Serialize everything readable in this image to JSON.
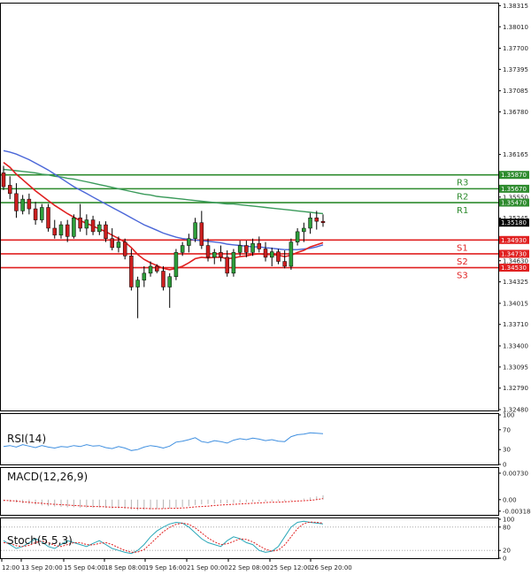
{
  "chart_data": [
    {
      "type": "candlestick",
      "panel": "price",
      "ylim": [
        1.3248,
        1.3832
      ],
      "yticks": [
        "1.38315",
        "1.38010",
        "1.37700",
        "1.37395",
        "1.37085",
        "1.36780",
        "1.36165",
        "1.35860",
        "1.35550",
        "1.35245",
        "1.34935",
        "1.34630",
        "1.34325",
        "1.34015",
        "1.33710",
        "1.33400",
        "1.33095",
        "1.32790",
        "1.32480"
      ],
      "xticks": [
        "12:00",
        "13 Sep 20:00",
        "15 Sep 04:00",
        "18 Sep 08:00",
        "19 Sep 16:00",
        "21 Sep 00:00",
        "22 Sep 08:00",
        "25 Sep 12:00",
        "26 Sep 20:00"
      ],
      "levels": [
        {
          "name": "R3",
          "value": 1.3587,
          "label": "1.35870",
          "color": "#2e8b2e"
        },
        {
          "name": "R2",
          "value": 1.3567,
          "label": "1.35670",
          "color": "#2e8b2e"
        },
        {
          "name": "R1",
          "value": 1.3547,
          "label": "1.35470",
          "color": "#2e8b2e"
        },
        {
          "name": "S1",
          "value": 1.3493,
          "label": "1.34930",
          "color": "#e02020"
        },
        {
          "name": "S2",
          "value": 1.3473,
          "label": "1.34730",
          "color": "#e02020"
        },
        {
          "name": "S3",
          "value": 1.3453,
          "label": "1.34530",
          "color": "#e02020"
        }
      ],
      "current_price": {
        "value": 1.3518,
        "label": "1.35180"
      },
      "candles": [
        {
          "o": 1.359,
          "h": 1.36,
          "l": 1.3565,
          "c": 1.357
        },
        {
          "o": 1.3572,
          "h": 1.3585,
          "l": 1.3552,
          "c": 1.356
        },
        {
          "o": 1.356,
          "h": 1.3575,
          "l": 1.3525,
          "c": 1.3535
        },
        {
          "o": 1.3535,
          "h": 1.3558,
          "l": 1.353,
          "c": 1.3552
        },
        {
          "o": 1.3552,
          "h": 1.356,
          "l": 1.353,
          "c": 1.3538
        },
        {
          "o": 1.3538,
          "h": 1.3548,
          "l": 1.3515,
          "c": 1.3522
        },
        {
          "o": 1.3522,
          "h": 1.3545,
          "l": 1.3518,
          "c": 1.354
        },
        {
          "o": 1.354,
          "h": 1.3545,
          "l": 1.3505,
          "c": 1.351
        },
        {
          "o": 1.351,
          "h": 1.3522,
          "l": 1.3495,
          "c": 1.35
        },
        {
          "o": 1.35,
          "h": 1.352,
          "l": 1.3495,
          "c": 1.3515
        },
        {
          "o": 1.3515,
          "h": 1.3522,
          "l": 1.349,
          "c": 1.3498
        },
        {
          "o": 1.3498,
          "h": 1.353,
          "l": 1.3495,
          "c": 1.3525
        },
        {
          "o": 1.3525,
          "h": 1.3545,
          "l": 1.3505,
          "c": 1.351
        },
        {
          "o": 1.351,
          "h": 1.353,
          "l": 1.35,
          "c": 1.3522
        },
        {
          "o": 1.3522,
          "h": 1.3528,
          "l": 1.35,
          "c": 1.3505
        },
        {
          "o": 1.3505,
          "h": 1.352,
          "l": 1.35,
          "c": 1.3515
        },
        {
          "o": 1.3515,
          "h": 1.352,
          "l": 1.349,
          "c": 1.3495
        },
        {
          "o": 1.3495,
          "h": 1.351,
          "l": 1.3478,
          "c": 1.3482
        },
        {
          "o": 1.3482,
          "h": 1.3498,
          "l": 1.3475,
          "c": 1.349
        },
        {
          "o": 1.349,
          "h": 1.3495,
          "l": 1.3465,
          "c": 1.347
        },
        {
          "o": 1.347,
          "h": 1.348,
          "l": 1.342,
          "c": 1.3425
        },
        {
          "o": 1.3425,
          "h": 1.344,
          "l": 1.338,
          "c": 1.3435
        },
        {
          "o": 1.3435,
          "h": 1.3455,
          "l": 1.3425,
          "c": 1.3445
        },
        {
          "o": 1.3445,
          "h": 1.3462,
          "l": 1.344,
          "c": 1.3455
        },
        {
          "o": 1.3455,
          "h": 1.3458,
          "l": 1.3445,
          "c": 1.3448
        },
        {
          "o": 1.3448,
          "h": 1.3455,
          "l": 1.342,
          "c": 1.3425
        },
        {
          "o": 1.3425,
          "h": 1.3445,
          "l": 1.3395,
          "c": 1.344
        },
        {
          "o": 1.344,
          "h": 1.348,
          "l": 1.3435,
          "c": 1.3475
        },
        {
          "o": 1.3475,
          "h": 1.349,
          "l": 1.347,
          "c": 1.3485
        },
        {
          "o": 1.3485,
          "h": 1.3502,
          "l": 1.3475,
          "c": 1.3495
        },
        {
          "o": 1.3495,
          "h": 1.3525,
          "l": 1.349,
          "c": 1.3518
        },
        {
          "o": 1.3518,
          "h": 1.3535,
          "l": 1.348,
          "c": 1.3485
        },
        {
          "o": 1.3485,
          "h": 1.3495,
          "l": 1.3462,
          "c": 1.3468
        },
        {
          "o": 1.3468,
          "h": 1.348,
          "l": 1.3458,
          "c": 1.3475
        },
        {
          "o": 1.3475,
          "h": 1.3485,
          "l": 1.3462,
          "c": 1.3468
        },
        {
          "o": 1.3468,
          "h": 1.3478,
          "l": 1.344,
          "c": 1.3445
        },
        {
          "o": 1.3445,
          "h": 1.348,
          "l": 1.344,
          "c": 1.3475
        },
        {
          "o": 1.3475,
          "h": 1.3492,
          "l": 1.347,
          "c": 1.3485
        },
        {
          "o": 1.3485,
          "h": 1.3492,
          "l": 1.3468,
          "c": 1.3475
        },
        {
          "o": 1.3475,
          "h": 1.3495,
          "l": 1.347,
          "c": 1.3488
        },
        {
          "o": 1.3488,
          "h": 1.3498,
          "l": 1.3475,
          "c": 1.348
        },
        {
          "o": 1.348,
          "h": 1.349,
          "l": 1.3462,
          "c": 1.3468
        },
        {
          "o": 1.3468,
          "h": 1.3482,
          "l": 1.3455,
          "c": 1.3476
        },
        {
          "o": 1.3476,
          "h": 1.348,
          "l": 1.3458,
          "c": 1.3462
        },
        {
          "o": 1.3462,
          "h": 1.3478,
          "l": 1.3452,
          "c": 1.3455
        },
        {
          "o": 1.3455,
          "h": 1.3495,
          "l": 1.345,
          "c": 1.349
        },
        {
          "o": 1.349,
          "h": 1.351,
          "l": 1.3485,
          "c": 1.3505
        },
        {
          "o": 1.3505,
          "h": 1.3518,
          "l": 1.349,
          "c": 1.351
        },
        {
          "o": 1.351,
          "h": 1.3532,
          "l": 1.3502,
          "c": 1.3525
        },
        {
          "o": 1.3525,
          "h": 1.3535,
          "l": 1.3508,
          "c": 1.352
        },
        {
          "o": 1.352,
          "h": 1.353,
          "l": 1.3512,
          "c": 1.3518
        }
      ],
      "ma_red": [
        1.3605,
        1.3598,
        1.3588,
        1.358,
        1.3572,
        1.3564,
        1.3557,
        1.355,
        1.3543,
        1.3537,
        1.3531,
        1.3526,
        1.3521,
        1.3517,
        1.3513,
        1.3509,
        1.3505,
        1.35,
        1.3495,
        1.349,
        1.3482,
        1.3472,
        1.3465,
        1.346,
        1.3456,
        1.3452,
        1.345,
        1.3452,
        1.3455,
        1.346,
        1.3466,
        1.3468,
        1.3467,
        1.3468,
        1.3468,
        1.3466,
        1.3467,
        1.3469,
        1.347,
        1.3472,
        1.3473,
        1.3472,
        1.3472,
        1.3471,
        1.3469,
        1.3471,
        1.3475,
        1.3478,
        1.3483,
        1.3486,
        1.3489
      ],
      "ma_blue": [
        1.3622,
        1.362,
        1.3617,
        1.3613,
        1.3609,
        1.3604,
        1.3599,
        1.3594,
        1.3588,
        1.3582,
        1.3576,
        1.357,
        1.3565,
        1.356,
        1.3555,
        1.355,
        1.3545,
        1.354,
        1.3535,
        1.353,
        1.3525,
        1.352,
        1.3515,
        1.3511,
        1.3507,
        1.3503,
        1.35,
        1.3497,
        1.3495,
        1.3494,
        1.3493,
        1.3492,
        1.3491,
        1.349,
        1.3489,
        1.3487,
        1.3486,
        1.3485,
        1.3484,
        1.3483,
        1.3483,
        1.3482,
        1.3481,
        1.348,
        1.3479,
        1.3479,
        1.3479,
        1.348,
        1.3481,
        1.3483,
        1.3486
      ],
      "ma_green": [
        1.3595,
        1.3594,
        1.3593,
        1.3592,
        1.3591,
        1.359,
        1.3588,
        1.3587,
        1.3585,
        1.3584,
        1.3582,
        1.3581,
        1.3579,
        1.3577,
        1.3575,
        1.3573,
        1.3571,
        1.3569,
        1.3567,
        1.3565,
        1.3563,
        1.3561,
        1.3559,
        1.3558,
        1.3556,
        1.3555,
        1.3554,
        1.3553,
        1.3552,
        1.3551,
        1.355,
        1.3549,
        1.3548,
        1.3547,
        1.3546,
        1.3545,
        1.3545,
        1.3544,
        1.3543,
        1.3542,
        1.3541,
        1.354,
        1.3539,
        1.3538,
        1.3537,
        1.3536,
        1.3535,
        1.3534,
        1.3533,
        1.3532,
        1.3531
      ]
    },
    {
      "type": "line",
      "panel": "rsi",
      "title": "RSI(14)",
      "ylim": [
        0,
        100
      ],
      "yticks": [
        "100",
        "70",
        "30",
        "0"
      ],
      "values": [
        36,
        38,
        35,
        40,
        37,
        34,
        38,
        35,
        33,
        36,
        35,
        38,
        36,
        40,
        37,
        38,
        34,
        32,
        36,
        33,
        28,
        30,
        35,
        38,
        36,
        33,
        37,
        45,
        47,
        50,
        54,
        46,
        44,
        48,
        46,
        43,
        49,
        52,
        50,
        53,
        51,
        48,
        50,
        47,
        46,
        56,
        60,
        61,
        64,
        63,
        62
      ]
    },
    {
      "type": "bar",
      "panel": "macd",
      "title": "MACD(12,26,9)",
      "ylim": [
        -0.0042,
        0.0085
      ],
      "yticks": [
        "0.00730",
        "0.00",
        "-0.003184"
      ],
      "values": [
        -0.0004,
        -0.0006,
        -0.0008,
        -0.001,
        -0.0012,
        -0.0014,
        -0.0016,
        -0.0018,
        -0.0019,
        -0.002,
        -0.0021,
        -0.0021,
        -0.0022,
        -0.0022,
        -0.0022,
        -0.0022,
        -0.0023,
        -0.0024,
        -0.0024,
        -0.0025,
        -0.0027,
        -0.0029,
        -0.0028,
        -0.0027,
        -0.0026,
        -0.0025,
        -0.0024,
        -0.0022,
        -0.002,
        -0.0018,
        -0.0015,
        -0.0013,
        -0.0012,
        -0.0011,
        -0.001,
        -0.001,
        -0.0009,
        -0.0008,
        -0.0007,
        -0.0006,
        -0.0005,
        -0.0005,
        -0.0004,
        -0.0004,
        -0.0004,
        -0.0002,
        0.0,
        0.0003,
        0.0006,
        0.0009,
        0.0012
      ],
      "signal": [
        -0.0002,
        -0.0003,
        -0.0004,
        -0.0006,
        -0.0007,
        -0.0009,
        -0.001,
        -0.0012,
        -0.0013,
        -0.0014,
        -0.0015,
        -0.0016,
        -0.0017,
        -0.0018,
        -0.0019,
        -0.0019,
        -0.002,
        -0.0021,
        -0.0021,
        -0.0022,
        -0.0023,
        -0.0024,
        -0.0024,
        -0.0025,
        -0.0025,
        -0.0025,
        -0.0024,
        -0.0024,
        -0.0023,
        -0.0022,
        -0.002,
        -0.0019,
        -0.0018,
        -0.0016,
        -0.0015,
        -0.0014,
        -0.0013,
        -0.0012,
        -0.0011,
        -0.001,
        -0.0009,
        -0.0008,
        -0.0007,
        -0.0007,
        -0.0006,
        -0.0005,
        -0.0004,
        -0.0003,
        -0.0002,
        0.0,
        0.0003
      ]
    },
    {
      "type": "line",
      "panel": "stoch",
      "title": "Stoch(5,5,3)",
      "ylim": [
        0,
        100
      ],
      "yticks": [
        "100",
        "80",
        "20",
        "0"
      ],
      "k": [
        45,
        35,
        25,
        30,
        40,
        50,
        42,
        30,
        25,
        35,
        45,
        40,
        35,
        30,
        38,
        45,
        35,
        25,
        20,
        15,
        12,
        20,
        35,
        55,
        70,
        80,
        88,
        92,
        90,
        80,
        65,
        50,
        40,
        35,
        30,
        45,
        55,
        50,
        40,
        35,
        20,
        15,
        18,
        30,
        55,
        80,
        92,
        95,
        92,
        90,
        88
      ],
      "d": [
        40,
        38,
        32,
        30,
        33,
        40,
        44,
        40,
        33,
        30,
        35,
        40,
        40,
        35,
        34,
        38,
        40,
        35,
        27,
        20,
        15,
        16,
        22,
        37,
        53,
        68,
        79,
        87,
        90,
        87,
        78,
        65,
        52,
        42,
        35,
        37,
        43,
        50,
        48,
        42,
        32,
        23,
        18,
        21,
        34,
        55,
        76,
        89,
        93,
        92,
        90
      ]
    }
  ]
}
